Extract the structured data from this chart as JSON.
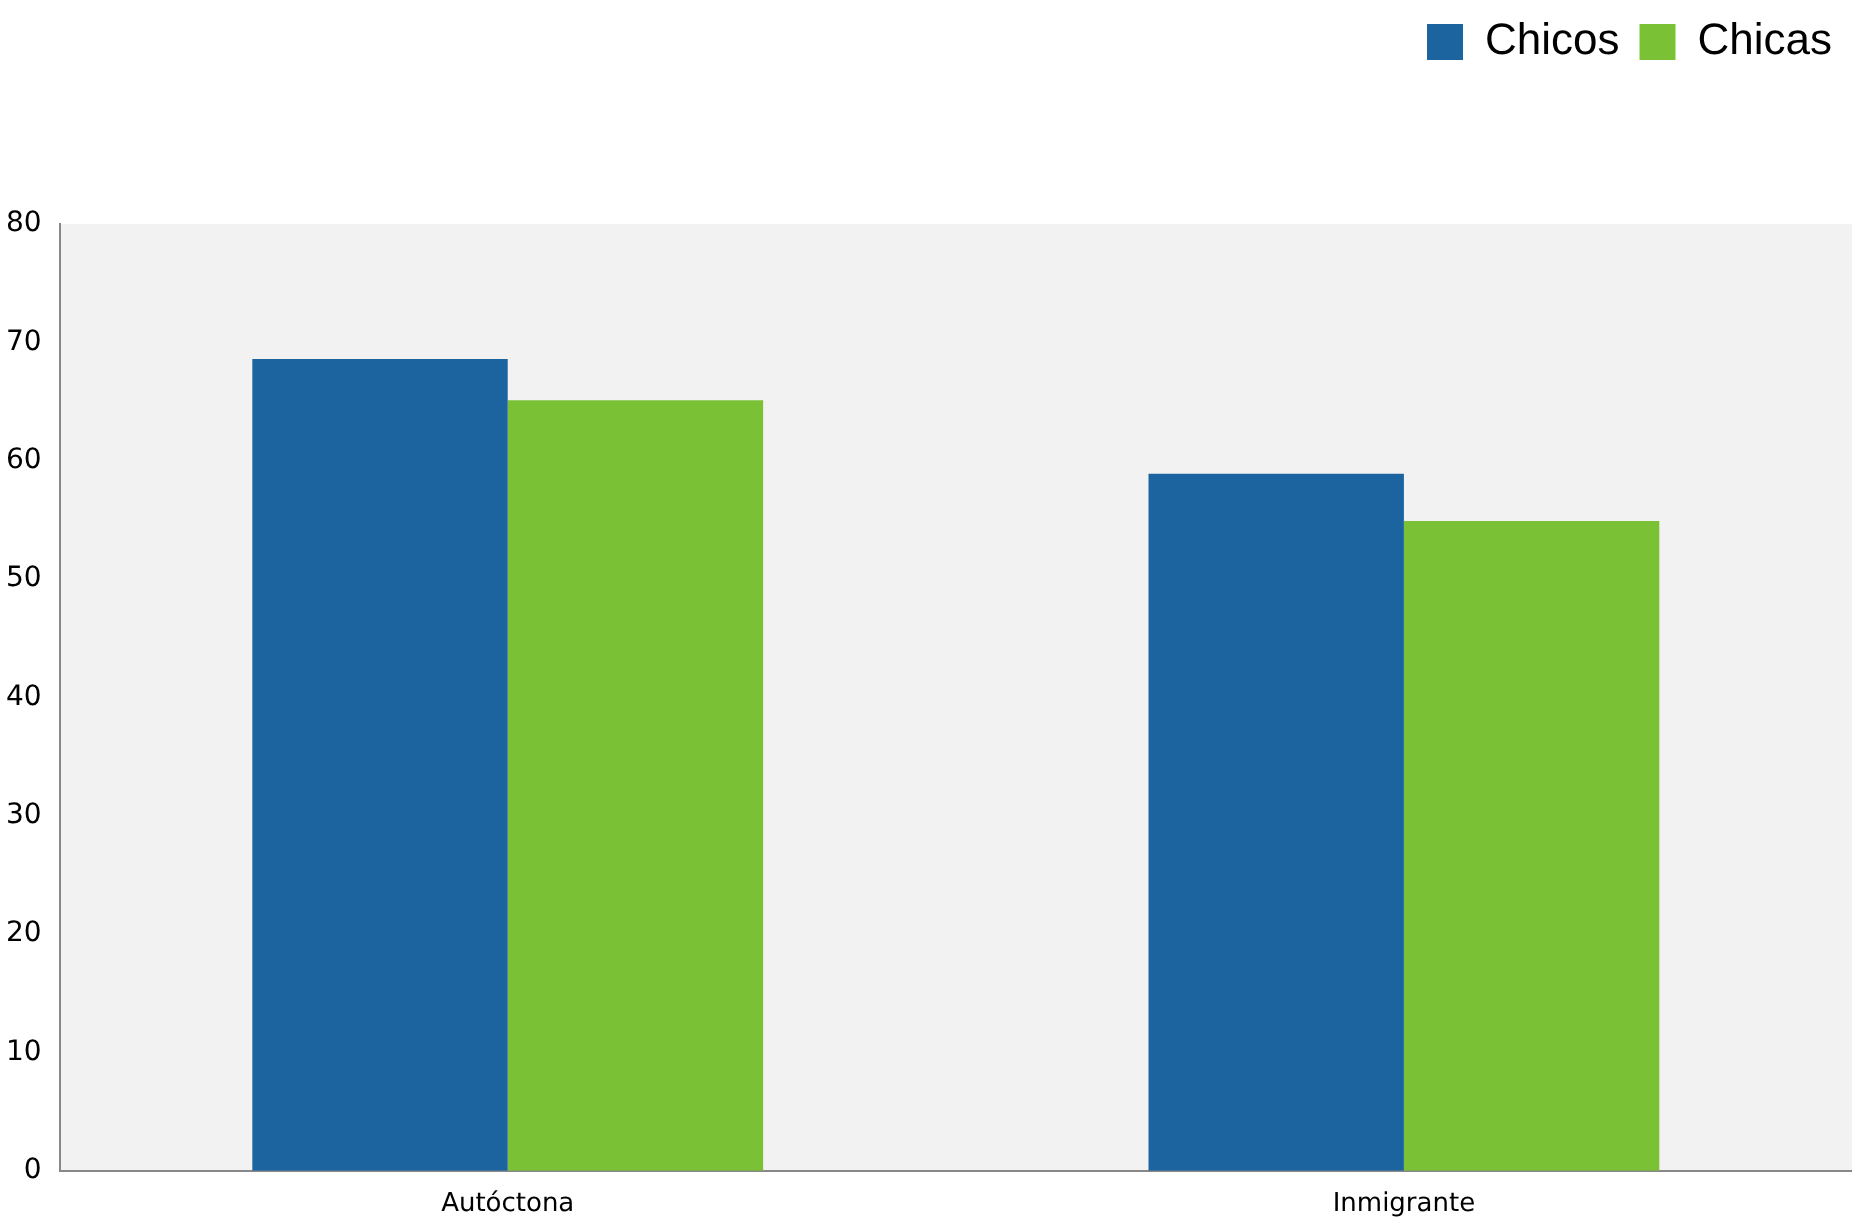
{
  "chart_data": {
    "type": "bar",
    "categories": [
      "Autóctona",
      "Inmigrante"
    ],
    "series": [
      {
        "name": "Chicos",
        "color": "#1c64a0",
        "values": [
          68.6,
          58.9
        ]
      },
      {
        "name": "Chicas",
        "color": "#7ac136",
        "values": [
          65.1,
          54.9
        ]
      }
    ],
    "ylim": [
      0,
      80
    ],
    "yticks": [
      0,
      10,
      20,
      30,
      40,
      50,
      60,
      70,
      80
    ],
    "grid": false,
    "legend": "top right"
  }
}
